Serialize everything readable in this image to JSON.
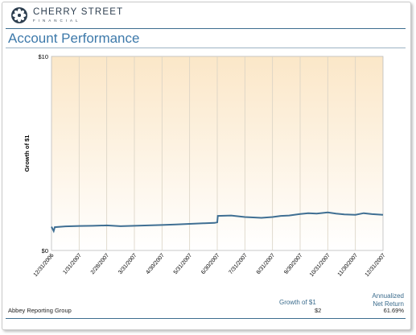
{
  "brand": {
    "name": "CHERRY STREET",
    "sub": "FINANCIAL"
  },
  "page": {
    "title": "Account Performance"
  },
  "chart_data": {
    "type": "line",
    "ylabel": "Growth of $1",
    "xlabel": "",
    "title": "",
    "ylim": [
      0,
      10
    ],
    "y_ticks": [
      "$0",
      "$10"
    ],
    "categories": [
      "12/31/2006",
      "1/31/2007",
      "2/28/2007",
      "3/31/2007",
      "4/30/2007",
      "5/31/2007",
      "6/30/2007",
      "7/31/2007",
      "8/31/2007",
      "9/30/2007",
      "10/31/2007",
      "11/30/2007",
      "12/31/2007"
    ],
    "x": [
      0,
      0.08,
      0.12,
      0.5,
      1,
      1.5,
      2,
      2.5,
      3,
      3.5,
      4,
      4.5,
      5,
      5.5,
      5.9,
      6,
      6.02,
      6.5,
      7,
      7.3,
      7.6,
      8,
      8.3,
      8.6,
      9,
      9.3,
      9.6,
      10,
      10.3,
      10.6,
      11,
      11.3,
      11.6,
      12
    ],
    "values": [
      1.22,
      1.0,
      1.2,
      1.24,
      1.26,
      1.27,
      1.29,
      1.25,
      1.27,
      1.29,
      1.31,
      1.34,
      1.37,
      1.4,
      1.42,
      1.45,
      1.78,
      1.8,
      1.72,
      1.7,
      1.68,
      1.72,
      1.78,
      1.8,
      1.88,
      1.92,
      1.9,
      1.96,
      1.9,
      1.86,
      1.84,
      1.92,
      1.87,
      1.84
    ],
    "grid": "vertical",
    "line_color": "#3f6f93",
    "background": "gradient-peach"
  },
  "table": {
    "col_growth": "Growth of $1",
    "col_return_1": "Annualized",
    "col_return_2": "Net Return",
    "rows": [
      {
        "name": "Abbey Reporting Group",
        "growth": "$2",
        "return": "61.69%"
      }
    ]
  },
  "colors": {
    "accent": "#3d79aa",
    "rule": "#3d6e8f",
    "series": "#3f6f93"
  }
}
